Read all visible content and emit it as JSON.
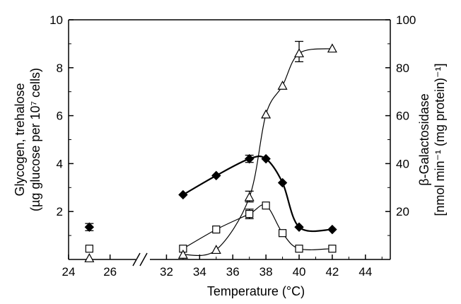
{
  "chart_data": {
    "type": "line",
    "title": "",
    "xlabel": "Temperature (°C)",
    "ylabel_left": [
      "Glycogen, trehalose",
      "(µg glucose per 10⁷ cells)"
    ],
    "ylabel_right": [
      "β-Galactosidase",
      "[nmol min⁻¹ (mg protein)⁻¹]"
    ],
    "x_ticks": [
      "24",
      "26",
      "32",
      "34",
      "36",
      "38",
      "40",
      "42",
      "44"
    ],
    "y_left_ticks": [
      "2",
      "4",
      "6",
      "8",
      "10"
    ],
    "y_right_ticks": [
      "20",
      "40",
      "60",
      "80",
      "100"
    ],
    "xlim_segment1": [
      24,
      27
    ],
    "xlim_segment2": [
      31,
      45.5
    ],
    "x_axis_break": true,
    "ylim_left": [
      0,
      10
    ],
    "ylim_right": [
      0,
      100
    ],
    "grid": false,
    "legend": "none",
    "series": [
      {
        "marker": "filled-diamond",
        "axis": "left",
        "points": [
          [
            25,
            1.35
          ],
          [
            33,
            2.7
          ],
          [
            35,
            3.5
          ],
          [
            37,
            4.2
          ],
          [
            38,
            4.2
          ],
          [
            39,
            3.2
          ],
          [
            40,
            1.35
          ],
          [
            42,
            1.25
          ]
        ],
        "error_bars": [
          [
            25,
            1.2,
            1.5
          ],
          [
            37,
            4.05,
            4.35
          ]
        ]
      },
      {
        "marker": "open-square",
        "axis": "left",
        "points": [
          [
            25,
            0.45
          ],
          [
            33,
            0.45
          ],
          [
            35,
            1.25
          ],
          [
            37,
            1.9
          ],
          [
            38,
            2.25
          ],
          [
            39,
            1.1
          ],
          [
            40,
            0.45
          ],
          [
            42,
            0.45
          ]
        ],
        "error_bars": [
          [
            37,
            1.7,
            2.1
          ]
        ]
      },
      {
        "marker": "open-triangle",
        "axis": "right",
        "points": [
          [
            25,
            0.5
          ],
          [
            33,
            2
          ],
          [
            35,
            4
          ],
          [
            37,
            26
          ],
          [
            38,
            60.5
          ],
          [
            39,
            72.5
          ],
          [
            40,
            86
          ],
          [
            42,
            88
          ]
        ],
        "error_bars": [
          [
            40,
            82.5,
            91
          ],
          [
            37,
            24,
            28.5
          ]
        ]
      }
    ]
  }
}
